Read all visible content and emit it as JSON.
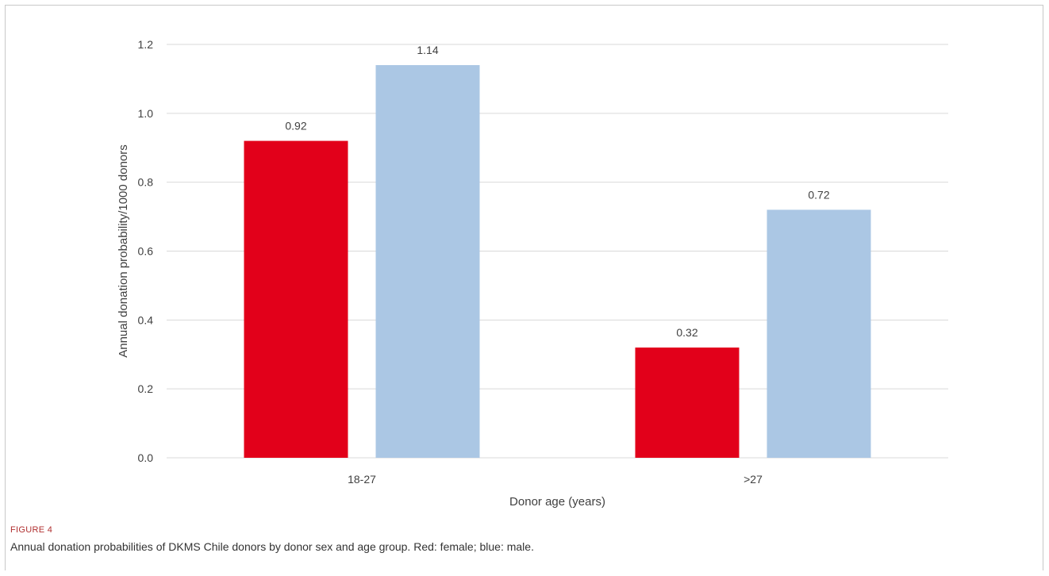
{
  "figure": {
    "label": "FIGURE 4",
    "caption": "Annual donation probabilities of DKMS Chile donors by donor sex and age group. Red: female; blue: male."
  },
  "chart_data": {
    "type": "bar",
    "categories": [
      "18-27",
      ">27"
    ],
    "series": [
      {
        "values": [
          0.92,
          0.32
        ],
        "color": "#e2001a"
      },
      {
        "values": [
          1.14,
          0.72
        ],
        "color": "#abc7e4"
      }
    ],
    "data_labels": [
      [
        "0.92",
        "0.32"
      ],
      [
        "1.14",
        "0.72"
      ]
    ],
    "xlabel": "Donor age (years)",
    "ylabel": "Annual donation probability/1000 donors",
    "ylim": [
      0,
      1.2
    ],
    "yticks": [
      "0.0",
      "0.2",
      "0.4",
      "0.6",
      "0.8",
      "1.0",
      "1.2"
    ],
    "grid": true,
    "legend": "none"
  }
}
